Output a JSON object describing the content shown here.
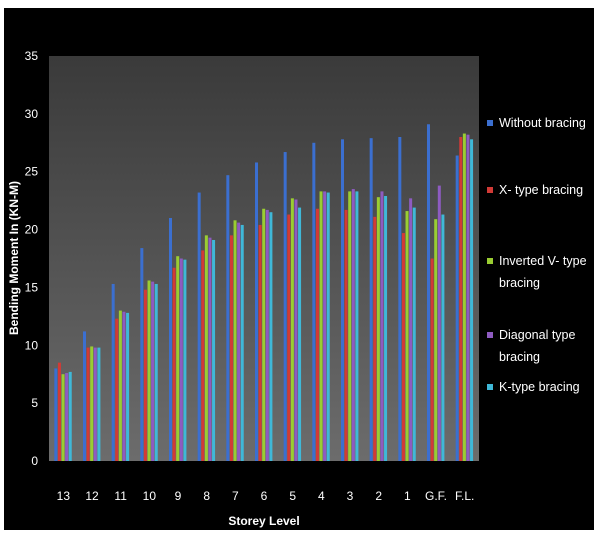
{
  "chart_data": {
    "type": "bar",
    "title": "",
    "xlabel": "Storey Level",
    "ylabel": "Bending Moment In (KN-M)",
    "ylim": [
      0,
      35
    ],
    "yticks": [
      "0",
      "5",
      "10",
      "15",
      "20",
      "25",
      "30",
      "35"
    ],
    "grid": false,
    "legend_position": "right",
    "categories": [
      "13",
      "12",
      "11",
      "10",
      "9",
      "8",
      "7",
      "6",
      "5",
      "4",
      "3",
      "2",
      "1",
      "G.F.",
      "F.L."
    ],
    "series": [
      {
        "name": "Without bracing",
        "color": "#3b6fd0",
        "values": [
          8.0,
          11.2,
          15.3,
          18.4,
          21.0,
          23.2,
          24.7,
          25.8,
          26.7,
          27.5,
          27.8,
          27.9,
          28.0,
          29.1,
          26.4
        ]
      },
      {
        "name": "X- type bracing",
        "color": "#d23a36",
        "values": [
          8.5,
          9.8,
          12.3,
          14.8,
          16.7,
          18.2,
          19.5,
          20.4,
          21.3,
          21.8,
          21.7,
          21.1,
          19.7,
          17.5,
          28.0
        ]
      },
      {
        "name": "Inverted V- type bracing",
        "color": "#9acd32",
        "values": [
          7.5,
          9.9,
          13.0,
          15.6,
          17.7,
          19.5,
          20.8,
          21.8,
          22.7,
          23.3,
          23.3,
          22.8,
          21.6,
          20.9,
          28.3
        ]
      },
      {
        "name": "Diagonal type bracing",
        "color": "#8e5bc1",
        "values": [
          7.6,
          9.8,
          12.9,
          15.5,
          17.5,
          19.3,
          20.6,
          21.7,
          22.6,
          23.3,
          23.5,
          23.3,
          22.7,
          23.8,
          28.2
        ]
      },
      {
        "name": "K-type bracing",
        "color": "#3fb8d8",
        "values": [
          7.7,
          9.8,
          12.8,
          15.3,
          17.4,
          19.1,
          20.4,
          21.5,
          21.9,
          23.2,
          23.3,
          22.9,
          21.9,
          21.3,
          27.8
        ]
      }
    ]
  }
}
